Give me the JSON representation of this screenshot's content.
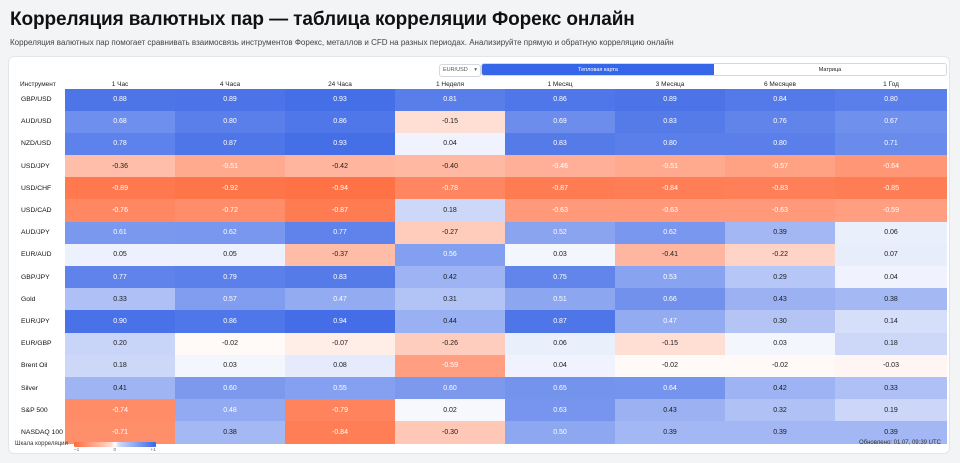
{
  "header": {
    "title": "Корреляция валютных пар — таблица корреляции Форекс онлайн",
    "subtitle": "Корреляция валютных пар помогает сравнивать взаимосвязь инструментов Форекс, металлов и CFD на разных периодах. Анализируйте прямую и обратную корреляцию онлайн"
  },
  "controls": {
    "selected_pair": "EUR/USD",
    "view_tabs": [
      {
        "label": "Тепловая карта",
        "active": true
      },
      {
        "label": "Матрица",
        "active": false
      }
    ]
  },
  "table": {
    "headers": [
      "Инструмент",
      "1 Час",
      "4 Часа",
      "24 Часа",
      "1 Неделя",
      "1 Месяц",
      "3 Месяца",
      "6 Месяцев",
      "1 Год"
    ],
    "rows": [
      {
        "instrument": "GBP/USD",
        "values": [
          "0.88",
          "0.89",
          "0.93",
          "0.81",
          "0.86",
          "0.89",
          "0.84",
          "0.80"
        ]
      },
      {
        "instrument": "AUD/USD",
        "values": [
          "0.68",
          "0.80",
          "0.86",
          "-0.15",
          "0.69",
          "0.83",
          "0.76",
          "0.67"
        ]
      },
      {
        "instrument": "NZD/USD",
        "values": [
          "0.78",
          "0.87",
          "0.93",
          "0.04",
          "0.83",
          "0.80",
          "0.80",
          "0.71"
        ]
      },
      {
        "instrument": "USD/JPY",
        "values": [
          "-0.36",
          "-0.51",
          "-0.42",
          "-0.40",
          "-0.46",
          "-0.51",
          "-0.57",
          "-0.64"
        ]
      },
      {
        "instrument": "USD/CHF",
        "values": [
          "-0.89",
          "-0.92",
          "-0.94",
          "-0.78",
          "-0.87",
          "-0.84",
          "-0.83",
          "-0.85"
        ]
      },
      {
        "instrument": "USD/CAD",
        "values": [
          "-0.76",
          "-0.72",
          "-0.87",
          "0.18",
          "-0.63",
          "-0.63",
          "-0.63",
          "-0.59"
        ]
      },
      {
        "instrument": "AUD/JPY",
        "values": [
          "0.61",
          "0.62",
          "0.77",
          "-0.27",
          "0.52",
          "0.62",
          "0.39",
          "0.06"
        ]
      },
      {
        "instrument": "EUR/AUD",
        "values": [
          "0.05",
          "0.05",
          "-0.37",
          "0.56",
          "0.03",
          "-0.41",
          "-0.22",
          "0.07"
        ]
      },
      {
        "instrument": "GBP/JPY",
        "values": [
          "0.77",
          "0.79",
          "0.83",
          "0.42",
          "0.75",
          "0.53",
          "0.29",
          "0.04"
        ]
      },
      {
        "instrument": "Gold",
        "values": [
          "0.33",
          "0.57",
          "0.47",
          "0.31",
          "0.51",
          "0.66",
          "0.43",
          "0.38"
        ]
      },
      {
        "instrument": "EUR/JPY",
        "values": [
          "0.90",
          "0.86",
          "0.94",
          "0.44",
          "0.87",
          "0.47",
          "0.30",
          "0.14"
        ]
      },
      {
        "instrument": "EUR/GBP",
        "values": [
          "0.20",
          "-0.02",
          "-0.07",
          "-0.26",
          "0.06",
          "-0.15",
          "0.03",
          "0.18"
        ]
      },
      {
        "instrument": "Brent Oil",
        "values": [
          "0.18",
          "0.03",
          "0.08",
          "-0.59",
          "0.04",
          "-0.02",
          "-0.02",
          "-0.03"
        ]
      },
      {
        "instrument": "Silver",
        "values": [
          "0.41",
          "0.60",
          "0.55",
          "0.60",
          "0.65",
          "0.64",
          "0.42",
          "0.33"
        ]
      },
      {
        "instrument": "S&P 500",
        "values": [
          "-0.74",
          "0.48",
          "-0.79",
          "0.02",
          "0.63",
          "0.43",
          "0.32",
          "0.19"
        ]
      },
      {
        "instrument": "NASDAQ 100",
        "values": [
          "-0.71",
          "0.38",
          "-0.84",
          "-0.30",
          "0.50",
          "0.39",
          "0.39",
          "0.39"
        ]
      }
    ]
  },
  "legend": {
    "label": "Шкала корреляции",
    "min": "−1",
    "mid": "0",
    "max": "+1"
  },
  "footer": {
    "updated": "Обновлено: 01.07, 09:39 UTC"
  },
  "colors": {
    "positive": "#3a66e6",
    "negative": "#ff6b3d",
    "accent": "#3567e8"
  }
}
